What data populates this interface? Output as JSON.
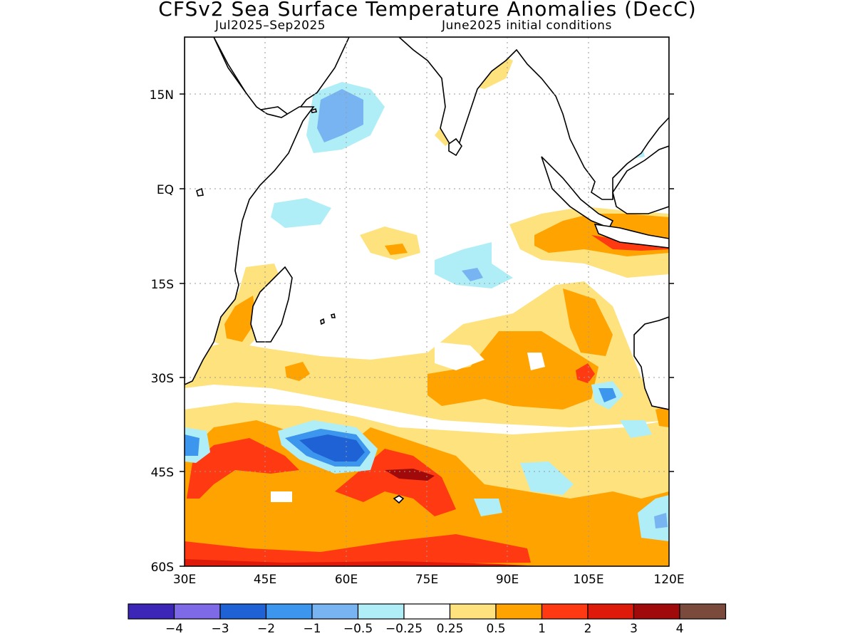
{
  "title": "CFSv2 Sea Surface Temperature Anomalies (DecC)",
  "subtitle_left": "Jul2025–Sep2025",
  "subtitle_right": "June2025 initial conditions",
  "y_ticks": [
    "15N",
    "EQ",
    "15S",
    "30S",
    "45S",
    "60S"
  ],
  "x_ticks": [
    "30E",
    "45E",
    "60E",
    "75E",
    "90E",
    "105E",
    "120E"
  ],
  "colorbar": {
    "colors": [
      "#3b26b8",
      "#7e6ae6",
      "#1f62d6",
      "#3d96ee",
      "#78b4f2",
      "#b0eef7",
      "#ffffff",
      "#fde27e",
      "#ffa300",
      "#ff3a12",
      "#de1a0a",
      "#a00a0a",
      "#7a4a3d"
    ],
    "labels": [
      "−4",
      "−3",
      "−2",
      "−1",
      "−0.5",
      "−0.25",
      "0.25",
      "0.5",
      "1",
      "2",
      "3",
      "4"
    ]
  },
  "map": {
    "lon_range": [
      30,
      120
    ],
    "lat_range": [
      -60,
      24
    ],
    "anomaly_color_key": {
      "weak_neg": "#b0eef7",
      "mod_neg": "#78b4f2",
      "neg": "#3d96ee",
      "strong_neg": "#1f62d6",
      "weak_pos": "#fde27e",
      "pos": "#ffa300",
      "strong_pos": "#ff3a12",
      "very_strong_pos": "#de1a0a",
      "extreme_pos": "#a00a0a"
    }
  }
}
